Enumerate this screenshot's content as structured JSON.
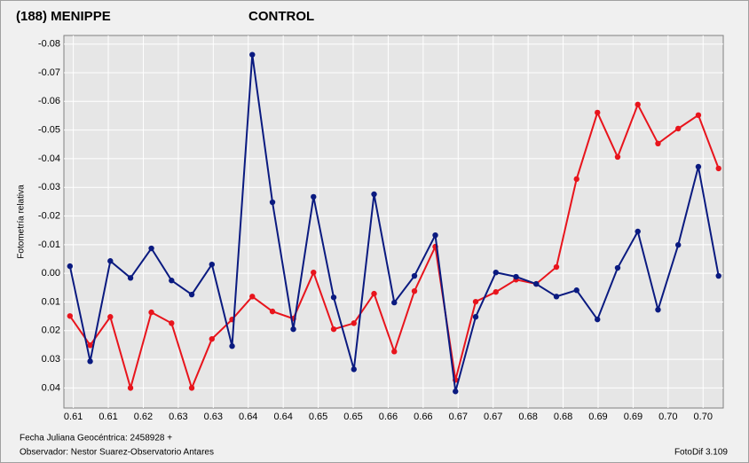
{
  "chart_data": {
    "type": "line",
    "y_label": "Fotometría relativa",
    "footer_left": [
      "Fecha Juliana Geocéntrica: 2458928 +",
      "Observador: Nestor Suarez-Observatorio Antares"
    ],
    "footer_right": "FotoDif 3.109",
    "y_inverted": true,
    "grid": true,
    "ylim": [
      -0.083,
      0.047
    ],
    "yticks": [
      -0.08,
      -0.07,
      -0.06,
      -0.05,
      -0.04,
      -0.03,
      -0.02,
      -0.01,
      {
        "value": 0,
        "label": "0.00"
      },
      0.01,
      0.02,
      0.03,
      0.04
    ],
    "xlim": [
      0.6076,
      0.7056
    ],
    "xticks": [
      {
        "value": 0.609,
        "label": "0.61"
      },
      {
        "value": 0.6142,
        "label": "0.61"
      },
      {
        "value": 0.6194,
        "label": "0.62"
      },
      {
        "value": 0.6246,
        "label": "0.63"
      },
      {
        "value": 0.6298,
        "label": "0.63"
      },
      {
        "value": 0.635,
        "label": "0.64"
      },
      {
        "value": 0.6402,
        "label": "0.64"
      },
      {
        "value": 0.6454,
        "label": "0.65"
      },
      {
        "value": 0.6506,
        "label": "0.65"
      },
      {
        "value": 0.6558,
        "label": "0.66"
      },
      {
        "value": 0.661,
        "label": "0.66"
      },
      {
        "value": 0.6662,
        "label": "0.67"
      },
      {
        "value": 0.6714,
        "label": "0.67"
      },
      {
        "value": 0.6766,
        "label": "0.68"
      },
      {
        "value": 0.6818,
        "label": "0.68"
      },
      {
        "value": 0.687,
        "label": "0.69"
      },
      {
        "value": 0.6922,
        "label": "0.69"
      },
      {
        "value": 0.6974,
        "label": "0.70"
      },
      {
        "value": 0.7026,
        "label": "0.70"
      }
    ],
    "x": [
      0.6085,
      0.6115,
      0.6145,
      0.6175,
      0.6206,
      0.6236,
      0.6266,
      0.6296,
      0.6326,
      0.6356,
      0.6386,
      0.6417,
      0.6447,
      0.6477,
      0.6507,
      0.6537,
      0.6567,
      0.6597,
      0.6628,
      0.6658,
      0.6688,
      0.6718,
      0.6748,
      0.6778,
      0.6808,
      0.6838,
      0.6869,
      0.6899,
      0.6929,
      0.6959,
      0.6989,
      0.7019,
      0.7049
    ],
    "series": [
      {
        "name": "(188) MENIPPE",
        "color": "#e8141c",
        "values": [
          0.0149,
          0.0251,
          0.0152,
          0.04,
          0.0136,
          0.0174,
          0.04,
          0.0229,
          0.0161,
          0.0081,
          0.0133,
          0.0158,
          -0.0003,
          0.0195,
          0.0174,
          0.0071,
          0.0273,
          0.0062,
          -0.0093,
          0.0372,
          0.0099,
          0.0065,
          0.0022,
          0.0037,
          -0.0022,
          -0.0329,
          -0.0561,
          -0.0406,
          -0.0589,
          -0.0453,
          -0.0505,
          -0.0552,
          -0.0366
        ]
      },
      {
        "name": "CONTROL",
        "color": "#0a1a80",
        "values": [
          -0.0025,
          0.0307,
          -0.0043,
          0.0016,
          -0.0087,
          0.0025,
          0.0074,
          -0.0031,
          0.0254,
          -0.0763,
          -0.0248,
          0.0195,
          -0.0267,
          0.0084,
          0.0335,
          -0.0276,
          0.0102,
          0.0009,
          -0.0133,
          0.0412,
          0.0152,
          -0.0003,
          0.0012,
          0.0037,
          0.0081,
          0.0059,
          0.0161,
          -0.0019,
          -0.0146,
          0.0127,
          -0.0099,
          -0.0372,
          0.0009
        ]
      }
    ]
  }
}
